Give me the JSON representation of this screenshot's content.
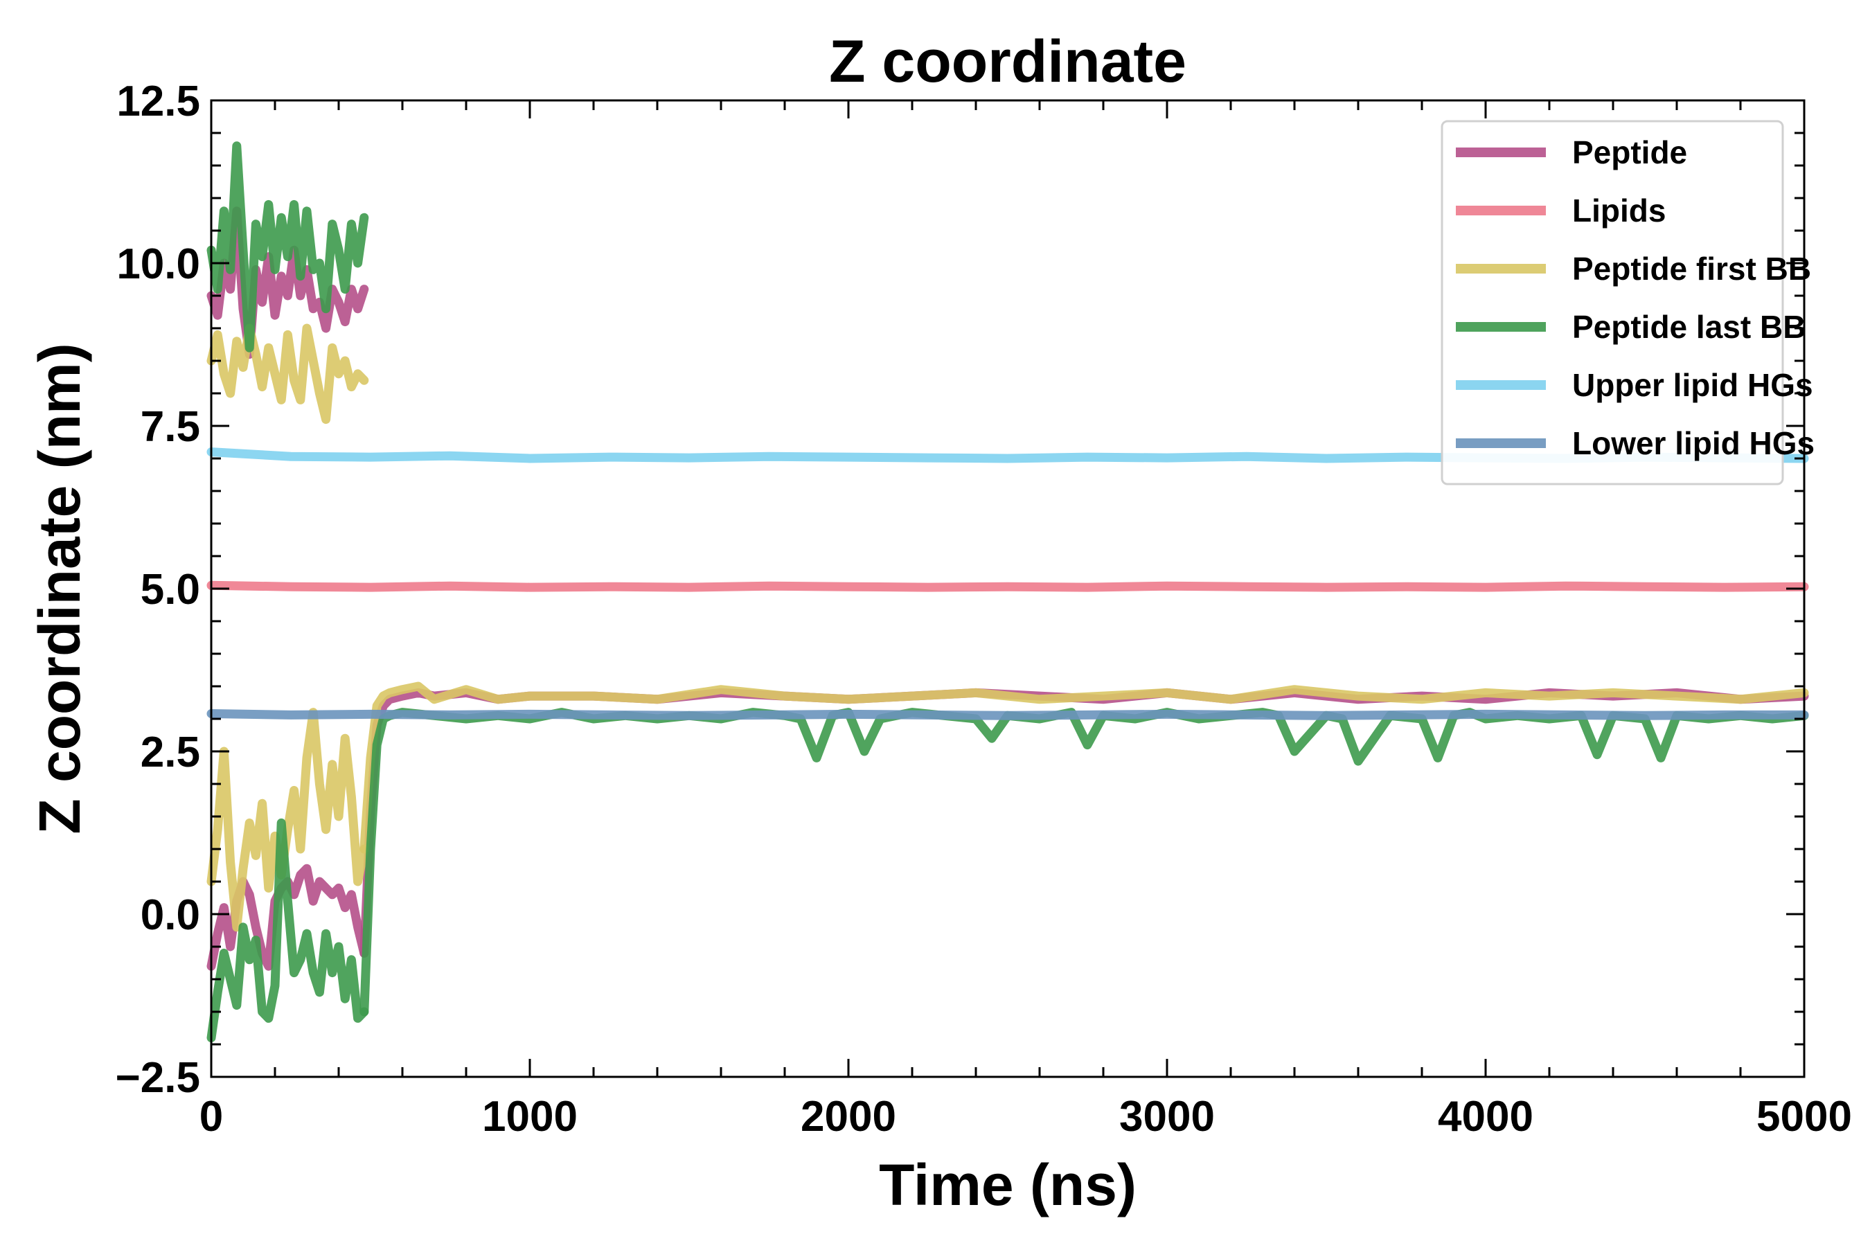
{
  "chart_data": {
    "type": "line",
    "title": "Z coordinate",
    "xlabel": "Time (ns)",
    "ylabel": "Z coordinate (nm)",
    "xlim": [
      0,
      5000
    ],
    "ylim": [
      -2.5,
      12.5
    ],
    "xticks": [
      0,
      1000,
      2000,
      3000,
      4000,
      5000
    ],
    "xtick_labels": [
      "0",
      "1000",
      "2000",
      "3000",
      "4000",
      "5000"
    ],
    "yticks": [
      -2.5,
      0.0,
      2.5,
      5.0,
      7.5,
      10.0,
      12.5
    ],
    "ytick_labels": [
      "−2.5",
      "0.0",
      "2.5",
      "5.0",
      "7.5",
      "10.0",
      "12.5"
    ],
    "grid": false,
    "legend_position": "top-right",
    "series": [
      {
        "name": "Peptide",
        "color": "#b5508a",
        "segments": [
          {
            "x": [
              0,
              20,
              40,
              60,
              80,
              100,
              120,
              140,
              160,
              180,
              200,
              220,
              240,
              260,
              280,
              300,
              320,
              340,
              360,
              380,
              400,
              420,
              440,
              460,
              480
            ],
            "y": [
              9.5,
              9.2,
              10.0,
              9.6,
              10.8,
              9.3,
              8.6,
              9.9,
              9.4,
              10.1,
              9.2,
              9.8,
              9.5,
              10.2,
              9.5,
              9.9,
              9.3,
              9.4,
              9.0,
              9.6,
              9.4,
              9.1,
              9.6,
              9.3,
              9.6
            ]
          },
          {
            "x": [
              0,
              20,
              40,
              60,
              80,
              100,
              120,
              140,
              160,
              180,
              200,
              220,
              240,
              260,
              280,
              300,
              320,
              340,
              360,
              380,
              400,
              420,
              440,
              460,
              480
            ],
            "y": [
              -0.8,
              -0.3,
              0.1,
              -0.5,
              0.2,
              0.5,
              0.3,
              -0.2,
              -0.6,
              -0.8,
              0.2,
              0.4,
              0.5,
              0.3,
              0.6,
              0.7,
              0.2,
              0.5,
              0.4,
              0.3,
              0.4,
              0.1,
              0.3,
              -0.2,
              -0.6
            ]
          },
          {
            "x": [
              480,
              500,
              520,
              540,
              560,
              600,
              650,
              700,
              800,
              900,
              1000,
              1200,
              1400,
              1600,
              1800,
              2000,
              2200,
              2400,
              2600,
              2800,
              3000,
              3200,
              3400,
              3600,
              3800,
              4000,
              4200,
              4400,
              4600,
              4800,
              5000
            ],
            "y": [
              -0.6,
              1.6,
              2.9,
              3.2,
              3.3,
              3.35,
              3.4,
              3.35,
              3.4,
              3.3,
              3.35,
              3.35,
              3.3,
              3.4,
              3.35,
              3.3,
              3.35,
              3.4,
              3.35,
              3.3,
              3.4,
              3.3,
              3.4,
              3.3,
              3.35,
              3.3,
              3.4,
              3.35,
              3.4,
              3.3,
              3.35
            ]
          }
        ]
      },
      {
        "name": "Lipids",
        "color": "#ee7b8c",
        "segments": [
          {
            "x": [
              0,
              250,
              500,
              750,
              1000,
              1250,
              1500,
              1750,
              2000,
              2250,
              2500,
              2750,
              3000,
              3250,
              3500,
              3750,
              4000,
              4250,
              4500,
              4750,
              5000
            ],
            "y": [
              5.05,
              5.03,
              5.02,
              5.04,
              5.02,
              5.03,
              5.02,
              5.04,
              5.03,
              5.02,
              5.03,
              5.02,
              5.04,
              5.03,
              5.02,
              5.03,
              5.02,
              5.04,
              5.03,
              5.02,
              5.03
            ]
          }
        ]
      },
      {
        "name": "Peptide first BB",
        "color": "#d9c765",
        "segments": [
          {
            "x": [
              0,
              20,
              40,
              60,
              80,
              100,
              120,
              140,
              160,
              180,
              200,
              220,
              240,
              260,
              280,
              300,
              320,
              340,
              360,
              380,
              400,
              420,
              440,
              460,
              480
            ],
            "y": [
              8.5,
              8.9,
              8.3,
              8.0,
              8.8,
              8.4,
              9.0,
              8.6,
              8.1,
              8.7,
              8.3,
              7.9,
              8.9,
              8.2,
              7.9,
              9.0,
              8.5,
              8.0,
              7.6,
              8.7,
              8.3,
              8.5,
              8.1,
              8.3,
              8.2
            ]
          },
          {
            "x": [
              0,
              20,
              40,
              60,
              80,
              100,
              120,
              140,
              160,
              180,
              200,
              220,
              240,
              260,
              280,
              300,
              320,
              340,
              360,
              380,
              400,
              420,
              440,
              460,
              480
            ],
            "y": [
              0.5,
              1.3,
              2.5,
              0.8,
              -0.2,
              0.7,
              1.4,
              0.9,
              1.7,
              0.4,
              1.2,
              0.6,
              1.3,
              1.9,
              1.0,
              2.4,
              3.1,
              2.0,
              1.3,
              2.3,
              1.5,
              2.7,
              1.8,
              0.5,
              1.0
            ]
          },
          {
            "x": [
              480,
              500,
              520,
              540,
              560,
              600,
              650,
              700,
              800,
              900,
              1000,
              1200,
              1400,
              1600,
              1800,
              2000,
              2200,
              2400,
              2600,
              2800,
              3000,
              3200,
              3400,
              3600,
              3800,
              4000,
              4200,
              4400,
              4600,
              4800,
              5000
            ],
            "y": [
              1.0,
              2.4,
              3.2,
              3.35,
              3.4,
              3.45,
              3.5,
              3.3,
              3.45,
              3.3,
              3.35,
              3.35,
              3.3,
              3.45,
              3.35,
              3.3,
              3.35,
              3.4,
              3.3,
              3.35,
              3.4,
              3.3,
              3.45,
              3.35,
              3.3,
              3.4,
              3.35,
              3.4,
              3.35,
              3.3,
              3.4
            ]
          }
        ]
      },
      {
        "name": "Peptide last BB",
        "color": "#3d9a4c",
        "segments": [
          {
            "x": [
              0,
              20,
              40,
              60,
              80,
              100,
              120,
              140,
              160,
              180,
              200,
              220,
              240,
              260,
              280,
              300,
              320,
              340,
              360,
              380,
              400,
              420,
              440,
              460,
              480
            ],
            "y": [
              10.2,
              9.6,
              10.8,
              9.9,
              11.8,
              10.2,
              8.7,
              10.6,
              10.1,
              10.9,
              9.9,
              10.7,
              10.1,
              10.9,
              9.8,
              10.8,
              9.9,
              10.0,
              9.3,
              10.6,
              10.2,
              9.6,
              10.6,
              10.0,
              10.7
            ]
          },
          {
            "x": [
              0,
              20,
              40,
              60,
              80,
              100,
              120,
              140,
              160,
              180,
              200,
              220,
              240,
              260,
              280,
              300,
              320,
              340,
              360,
              380,
              400,
              420,
              440,
              460,
              480
            ],
            "y": [
              -1.9,
              -1.2,
              -0.6,
              -1.0,
              -1.4,
              -0.2,
              -0.7,
              -0.4,
              -1.5,
              -1.6,
              -1.1,
              1.4,
              0.2,
              -0.9,
              -0.7,
              -0.3,
              -0.9,
              -1.2,
              -0.3,
              -0.9,
              -0.5,
              -1.3,
              -0.7,
              -1.6,
              -1.5
            ]
          },
          {
            "x": [
              480,
              500,
              520,
              540,
              560,
              600,
              700,
              800,
              900,
              1000,
              1100,
              1200,
              1300,
              1400,
              1500,
              1600,
              1700,
              1800,
              1850,
              1900,
              1950,
              2000,
              2050,
              2100,
              2150,
              2200,
              2300,
              2400,
              2450,
              2500,
              2600,
              2700,
              2750,
              2800,
              2900,
              3000,
              3100,
              3200,
              3300,
              3350,
              3400,
              3500,
              3550,
              3600,
              3700,
              3800,
              3850,
              3900,
              3950,
              4000,
              4100,
              4200,
              4300,
              4350,
              4400,
              4500,
              4550,
              4600,
              4700,
              4800,
              4900,
              5000
            ],
            "y": [
              -1.5,
              1.0,
              2.6,
              3.0,
              3.05,
              3.1,
              3.05,
              3.0,
              3.05,
              3.0,
              3.1,
              3.0,
              3.05,
              3.0,
              3.05,
              3.0,
              3.1,
              3.05,
              3.0,
              2.4,
              3.05,
              3.1,
              2.5,
              3.0,
              3.05,
              3.1,
              3.05,
              3.0,
              2.7,
              3.05,
              3.0,
              3.1,
              2.6,
              3.05,
              3.0,
              3.1,
              3.0,
              3.05,
              3.1,
              3.05,
              2.5,
              3.05,
              3.0,
              2.35,
              3.05,
              3.0,
              2.4,
              3.05,
              3.1,
              3.0,
              3.05,
              3.0,
              3.05,
              2.45,
              3.05,
              3.0,
              2.4,
              3.05,
              3.0,
              3.05,
              3.0,
              3.05
            ]
          }
        ]
      },
      {
        "name": "Upper lipid HGs",
        "color": "#7fd1ef",
        "segments": [
          {
            "x": [
              0,
              250,
              500,
              750,
              1000,
              1250,
              1500,
              1750,
              2000,
              2250,
              2500,
              2750,
              3000,
              3250,
              3500,
              3750,
              4000,
              4250,
              4500,
              4750,
              5000
            ],
            "y": [
              7.1,
              7.03,
              7.02,
              7.04,
              7.0,
              7.02,
              7.01,
              7.03,
              7.02,
              7.01,
              7.0,
              7.02,
              7.01,
              7.03,
              7.0,
              7.02,
              7.01,
              7.0,
              7.02,
              7.01,
              7.0
            ]
          }
        ]
      },
      {
        "name": "Lower lipid HGs",
        "color": "#6a93bc",
        "segments": [
          {
            "x": [
              0,
              250,
              500,
              750,
              1000,
              1250,
              1500,
              1750,
              2000,
              2250,
              2500,
              2750,
              3000,
              3250,
              3500,
              3750,
              4000,
              4250,
              4500,
              4750,
              5000
            ],
            "y": [
              3.08,
              3.06,
              3.07,
              3.06,
              3.07,
              3.06,
              3.05,
              3.06,
              3.07,
              3.06,
              3.05,
              3.06,
              3.07,
              3.06,
              3.05,
              3.06,
              3.07,
              3.06,
              3.05,
              3.06,
              3.06
            ]
          }
        ]
      }
    ]
  }
}
